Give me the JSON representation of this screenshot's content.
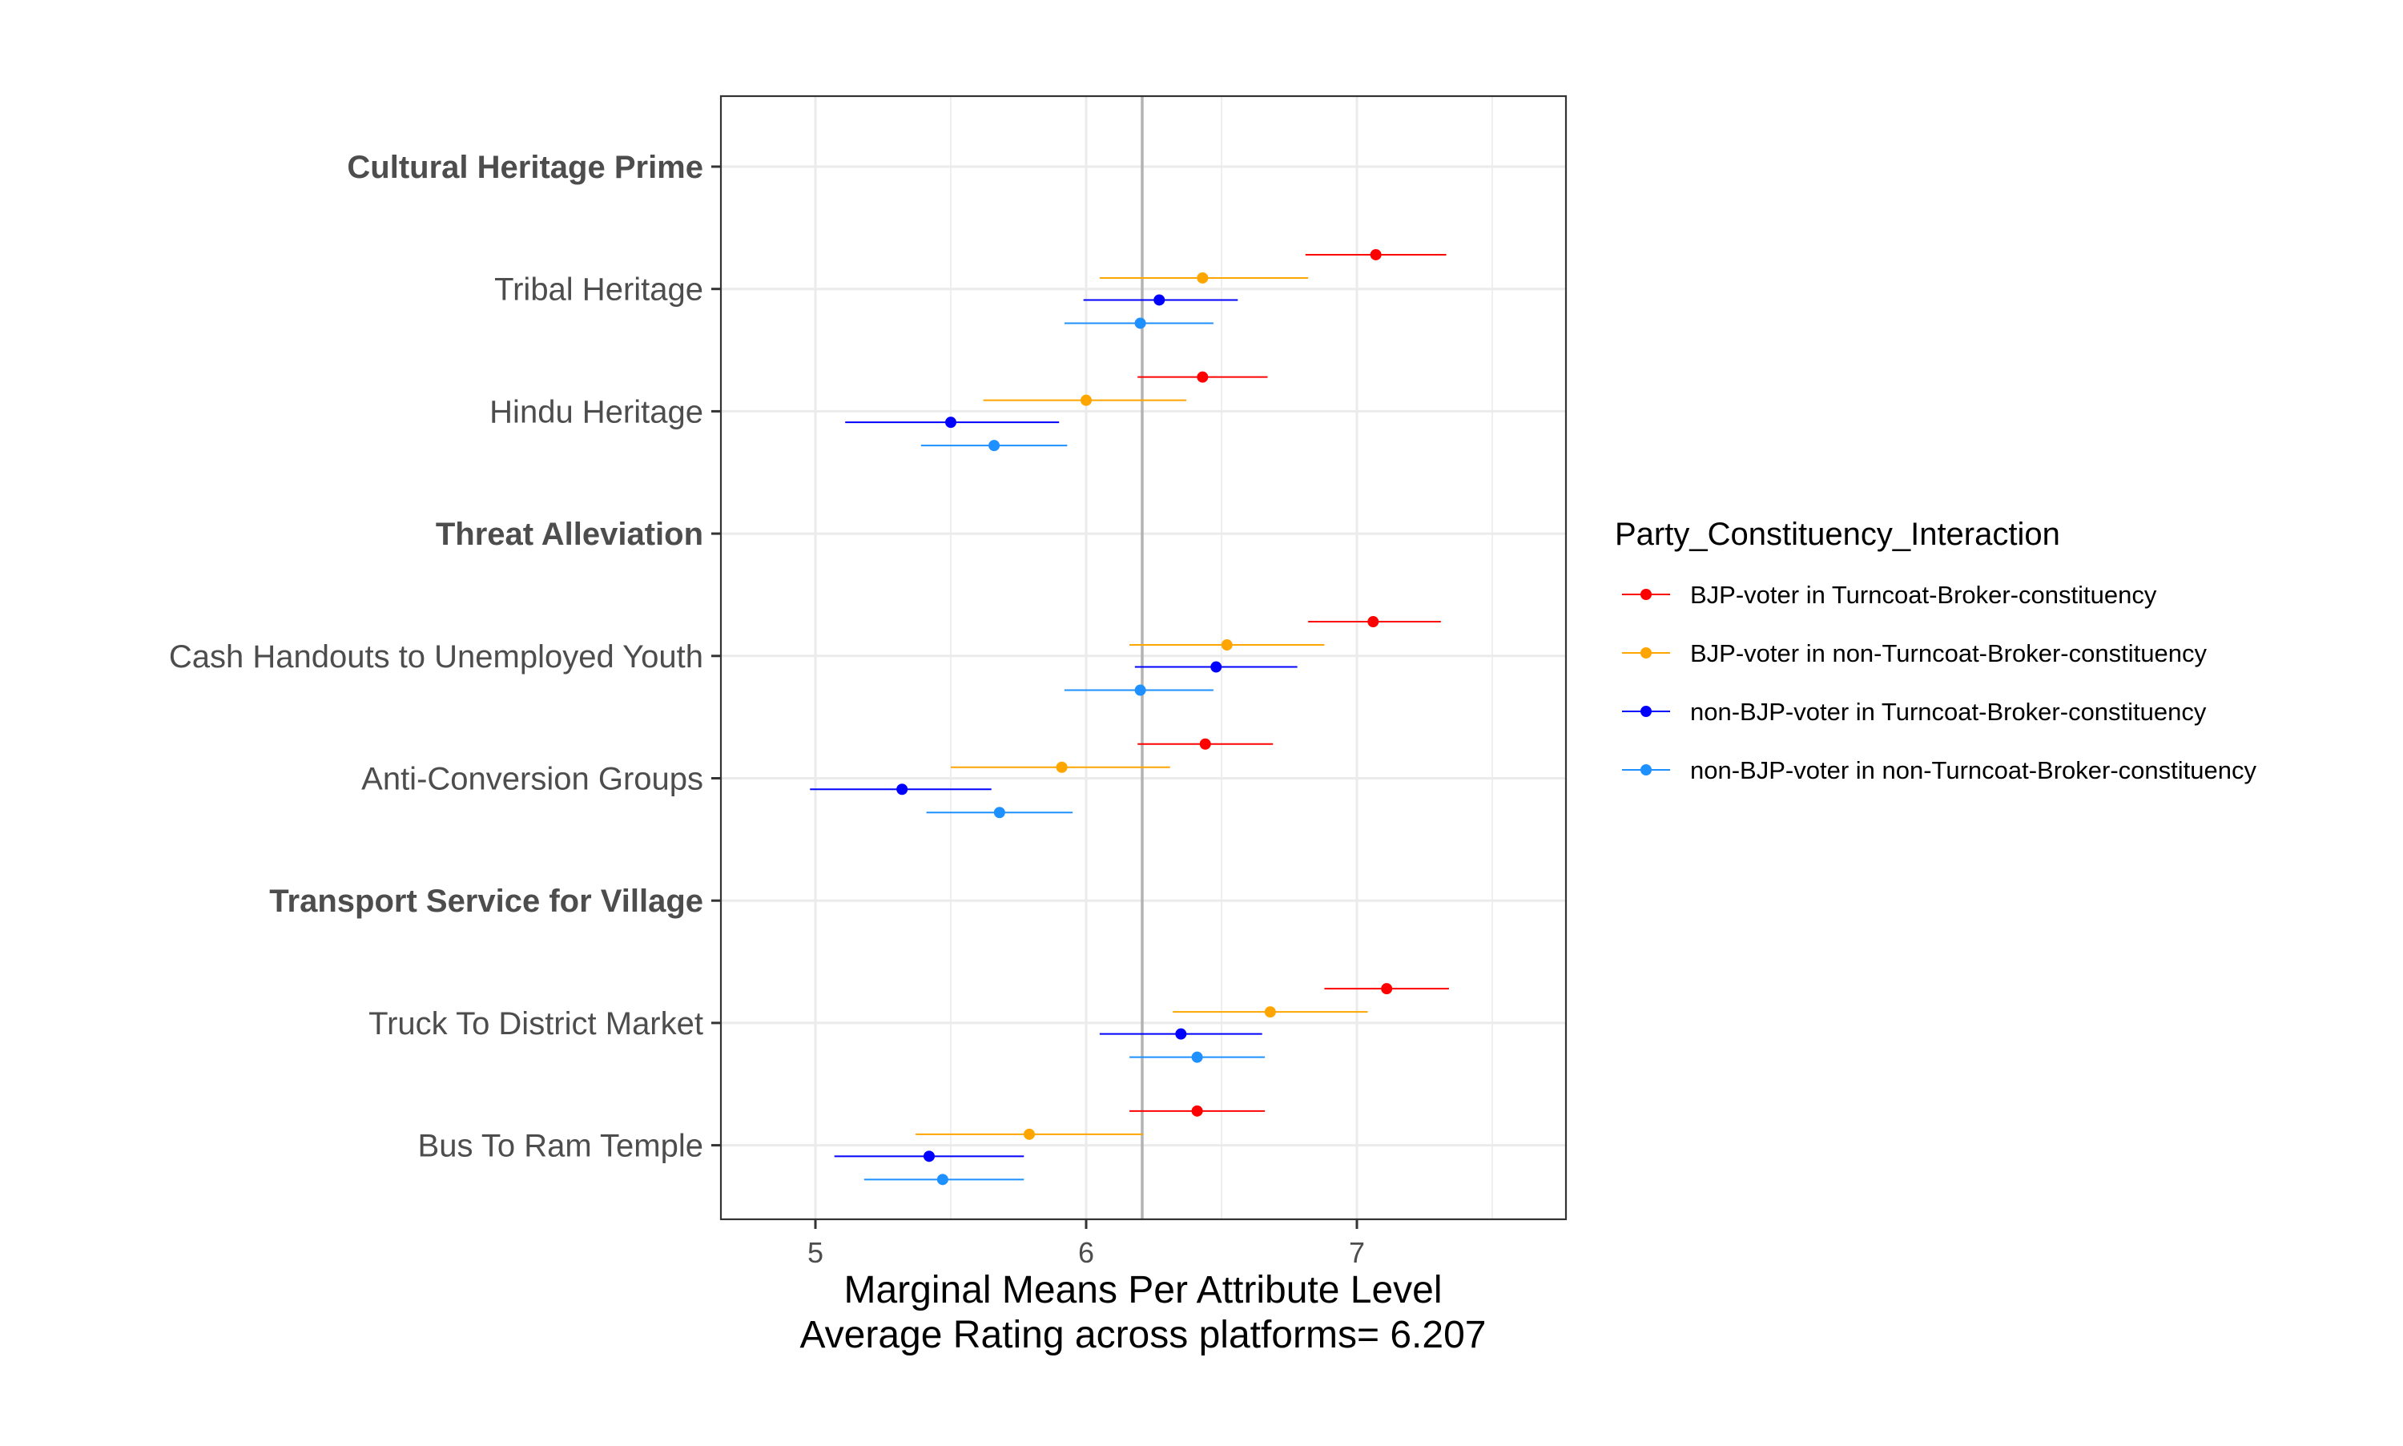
{
  "chart_data": {
    "type": "scatter",
    "subtype": "dot-and-whisker",
    "xlabel": "Marginal Means Per Attribute Level",
    "xlabel_line2": "Average Rating across platforms= 6.207",
    "xlim": [
      4.65,
      7.78
    ],
    "xticks": [
      5,
      6,
      7
    ],
    "reference_line": 6.207,
    "grid": true,
    "legend_title": "Party_Constituency_Interaction",
    "legend_position": "right",
    "categories": [
      {
        "label": "Cultural Heritage Prime",
        "header": true
      },
      {
        "label": "Tribal Heritage",
        "header": false
      },
      {
        "label": "Hindu Heritage",
        "header": false
      },
      {
        "label": "Threat Alleviation",
        "header": true
      },
      {
        "label": "Cash Handouts to Unemployed Youth",
        "header": false
      },
      {
        "label": "Anti-Conversion Groups",
        "header": false
      },
      {
        "label": "Transport Service for Village",
        "header": true
      },
      {
        "label": "Truck To District Market",
        "header": false
      },
      {
        "label": "Bus To Ram Temple",
        "header": false
      }
    ],
    "series": [
      {
        "name": "BJP-voter in Turncoat-Broker-constituency",
        "color": "#ff0000",
        "offset": -0.28,
        "points": [
          {
            "category": "Tribal Heritage",
            "estimate": 7.07,
            "lower": 6.81,
            "upper": 7.33
          },
          {
            "category": "Hindu Heritage",
            "estimate": 6.43,
            "lower": 6.19,
            "upper": 6.67
          },
          {
            "category": "Cash Handouts to Unemployed Youth",
            "estimate": 7.06,
            "lower": 6.82,
            "upper": 7.31
          },
          {
            "category": "Anti-Conversion Groups",
            "estimate": 6.44,
            "lower": 6.19,
            "upper": 6.69
          },
          {
            "category": "Truck To District Market",
            "estimate": 7.11,
            "lower": 6.88,
            "upper": 7.34
          },
          {
            "category": "Bus To Ram Temple",
            "estimate": 6.41,
            "lower": 6.16,
            "upper": 6.66
          }
        ]
      },
      {
        "name": "BJP-voter in non-Turncoat-Broker-constituency",
        "color": "#ffa500",
        "offset": -0.09,
        "points": [
          {
            "category": "Tribal Heritage",
            "estimate": 6.43,
            "lower": 6.05,
            "upper": 6.82
          },
          {
            "category": "Hindu Heritage",
            "estimate": 6.0,
            "lower": 5.62,
            "upper": 6.37
          },
          {
            "category": "Cash Handouts to Unemployed Youth",
            "estimate": 6.52,
            "lower": 6.16,
            "upper": 6.88
          },
          {
            "category": "Anti-Conversion Groups",
            "estimate": 5.91,
            "lower": 5.5,
            "upper": 6.31
          },
          {
            "category": "Truck To District Market",
            "estimate": 6.68,
            "lower": 6.32,
            "upper": 7.04
          },
          {
            "category": "Bus To Ram Temple",
            "estimate": 5.79,
            "lower": 5.37,
            "upper": 6.21
          }
        ]
      },
      {
        "name": "non-BJP-voter in Turncoat-Broker-constituency",
        "color": "#0000ff",
        "offset": 0.09,
        "points": [
          {
            "category": "Tribal Heritage",
            "estimate": 6.27,
            "lower": 5.99,
            "upper": 6.56
          },
          {
            "category": "Hindu Heritage",
            "estimate": 5.5,
            "lower": 5.11,
            "upper": 5.9
          },
          {
            "category": "Cash Handouts to Unemployed Youth",
            "estimate": 6.48,
            "lower": 6.18,
            "upper": 6.78
          },
          {
            "category": "Anti-Conversion Groups",
            "estimate": 5.32,
            "lower": 4.98,
            "upper": 5.65
          },
          {
            "category": "Truck To District Market",
            "estimate": 6.35,
            "lower": 6.05,
            "upper": 6.65
          },
          {
            "category": "Bus To Ram Temple",
            "estimate": 5.42,
            "lower": 5.07,
            "upper": 5.77
          }
        ]
      },
      {
        "name": "non-BJP-voter in non-Turncoat-Broker-constituency",
        "color": "#1e90ff",
        "offset": 0.28,
        "points": [
          {
            "category": "Tribal Heritage",
            "estimate": 6.2,
            "lower": 5.92,
            "upper": 6.47
          },
          {
            "category": "Hindu Heritage",
            "estimate": 5.66,
            "lower": 5.39,
            "upper": 5.93
          },
          {
            "category": "Cash Handouts to Unemployed Youth",
            "estimate": 6.2,
            "lower": 5.92,
            "upper": 6.47
          },
          {
            "category": "Anti-Conversion Groups",
            "estimate": 5.68,
            "lower": 5.41,
            "upper": 5.95
          },
          {
            "category": "Truck To District Market",
            "estimate": 6.41,
            "lower": 6.16,
            "upper": 6.66
          },
          {
            "category": "Bus To Ram Temple",
            "estimate": 5.47,
            "lower": 5.18,
            "upper": 5.77
          }
        ]
      }
    ]
  }
}
